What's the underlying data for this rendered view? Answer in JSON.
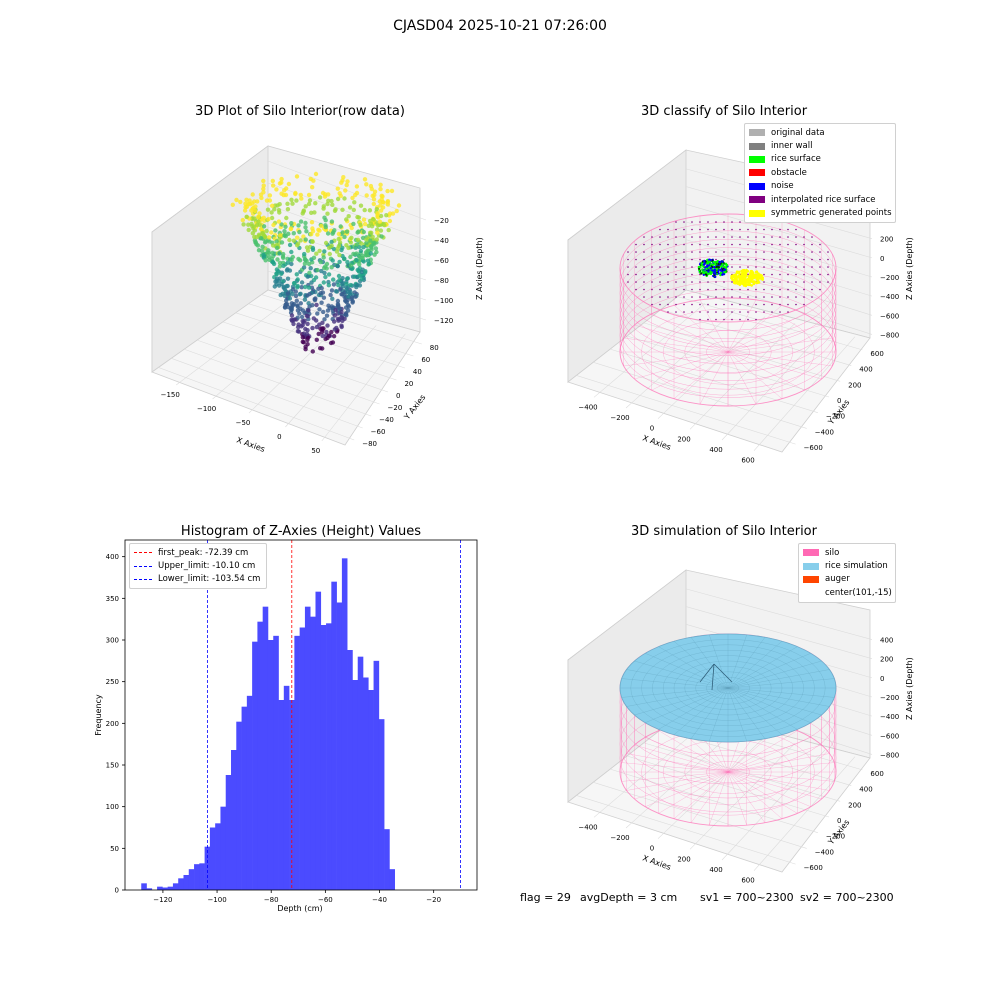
{
  "figure": {
    "title": "CJASD04 2025-10-21 07:26:00"
  },
  "panels": {
    "raw": {
      "title": "3D Plot of Silo Interior(row data)",
      "xlabel": "X Axies",
      "ylabel": "Y Axies",
      "zlabel": "Z Axies (Depth)",
      "xticks": [
        "−150",
        "−100",
        "−50",
        "0",
        "50"
      ],
      "yticks": [
        "−80",
        "−60",
        "−40",
        "−20",
        "0",
        "20",
        "40",
        "60",
        "80"
      ],
      "zticks": [
        "−20",
        "−40",
        "−60",
        "−80",
        "−100",
        "−120"
      ]
    },
    "classify": {
      "title": "3D classify of Silo Interior",
      "xlabel": "X Axies",
      "ylabel": "Y Axies",
      "zlabel": "Z Axies (Depth)",
      "xticks": [
        "−400",
        "−200",
        "0",
        "200",
        "400",
        "600"
      ],
      "yticks": [
        "−600",
        "−400",
        "−200",
        "0",
        "200",
        "400",
        "600"
      ],
      "zticks": [
        "400",
        "200",
        "0",
        "−200",
        "−400",
        "−600",
        "−800"
      ],
      "legend": [
        {
          "label": "original data",
          "color": "#b0b0b0"
        },
        {
          "label": "inner wall",
          "color": "#808080"
        },
        {
          "label": "rice surface",
          "color": "#00ff00"
        },
        {
          "label": "obstacle",
          "color": "#ff0000"
        },
        {
          "label": "noise",
          "color": "#0000ff"
        },
        {
          "label": "interpolated rice surface",
          "color": "#800080"
        },
        {
          "label": "symmetric generated points",
          "color": "#ffff00"
        }
      ]
    },
    "simulation": {
      "title": "3D simulation of Silo Interior",
      "xlabel": "X Axies",
      "ylabel": "Y Axies",
      "zlabel": "Z Axies (Depth)",
      "xticks": [
        "−400",
        "−200",
        "0",
        "200",
        "400",
        "600"
      ],
      "yticks": [
        "−600",
        "−400",
        "−200",
        "0",
        "200",
        "400",
        "600"
      ],
      "zticks": [
        "400",
        "200",
        "0",
        "−200",
        "−400",
        "−600",
        "−800"
      ],
      "legend": [
        {
          "label": "silo",
          "color": "#ff69b4"
        },
        {
          "label": "rice simulation",
          "color": "#87ceeb"
        },
        {
          "label": "auger",
          "color": "#ff4500"
        },
        {
          "label": "center(101,-15)",
          "color": ""
        }
      ]
    }
  },
  "footer": {
    "flag": "flag = 29",
    "avg": "avgDepth = 3 cm",
    "sv1": "sv1 = 700~2300",
    "sv2": "sv2 = 700~2300"
  },
  "chart_data": [
    {
      "type": "scatter",
      "title": "3D Plot of Silo Interior(row data)",
      "xlabel": "X Axies",
      "ylabel": "Y Axies",
      "zlabel": "Z Axies (Depth)",
      "xlim": [
        -160,
        80
      ],
      "ylim": [
        -85,
        90
      ],
      "zlim": [
        -135,
        -10
      ],
      "colormap": "viridis"
    },
    {
      "type": "scatter",
      "title": "3D classify of Silo Interior",
      "xlabel": "X Axies",
      "ylabel": "Y Axies",
      "zlabel": "Z Axies (Depth)",
      "xlim": [
        -500,
        700
      ],
      "ylim": [
        -650,
        650
      ],
      "zlim": [
        -900,
        450
      ],
      "series": [
        {
          "name": "original data"
        },
        {
          "name": "inner wall"
        },
        {
          "name": "rice surface"
        },
        {
          "name": "obstacle"
        },
        {
          "name": "noise"
        },
        {
          "name": "interpolated rice surface"
        },
        {
          "name": "symmetric generated points"
        }
      ]
    },
    {
      "type": "bar",
      "title": "Histogram of Z-Axies (Height) Values",
      "xlabel": "Depth (cm)",
      "ylabel": "Frequency",
      "xlim": [
        -134,
        -4
      ],
      "ylim": [
        0,
        420
      ],
      "xticks": [
        -120,
        -100,
        -80,
        -60,
        -40,
        -20
      ],
      "yticks": [
        0,
        50,
        100,
        150,
        200,
        250,
        300,
        350,
        400
      ],
      "bin_start": -128.0,
      "bin_width": 1.95,
      "values": [
        8,
        2,
        0,
        4,
        3,
        4,
        8,
        14,
        18,
        25,
        31,
        32,
        52,
        75,
        80,
        100,
        138,
        168,
        202,
        220,
        233,
        298,
        322,
        340,
        300,
        305,
        228,
        245,
        228,
        305,
        315,
        340,
        328,
        358,
        318,
        320,
        370,
        345,
        398,
        288,
        252,
        280,
        255,
        240,
        275,
        205,
        73,
        25
      ],
      "lines": [
        {
          "name": "first_peak: -72.39 cm",
          "x": -72.39,
          "color": "#ff0000"
        },
        {
          "name": "Upper_limit: -10.10 cm",
          "x": -10.1,
          "color": "#0000ff"
        },
        {
          "name": "Lower_limit: -103.54 cm",
          "x": -103.54,
          "color": "#0000ff"
        }
      ]
    },
    {
      "type": "scatter",
      "title": "3D simulation of Silo Interior",
      "xlabel": "X Axies",
      "ylabel": "Y Axies",
      "zlabel": "Z Axies (Depth)",
      "xlim": [
        -500,
        700
      ],
      "ylim": [
        -650,
        650
      ],
      "zlim": [
        -900,
        450
      ],
      "series": [
        {
          "name": "silo"
        },
        {
          "name": "rice simulation"
        },
        {
          "name": "auger"
        },
        {
          "name": "center(101,-15)"
        }
      ]
    }
  ]
}
